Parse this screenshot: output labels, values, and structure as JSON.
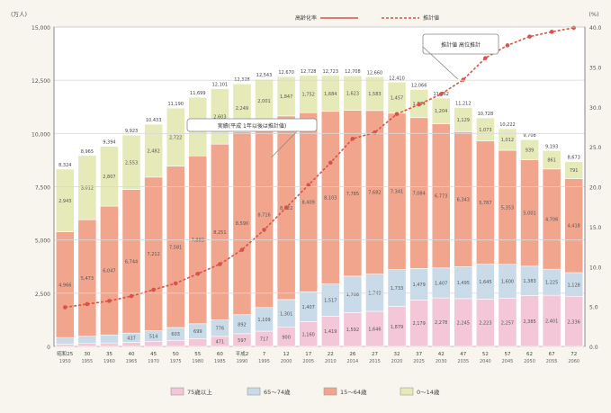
{
  "chart_data": {
    "type": "bar",
    "stacked": true,
    "title": "",
    "left_unit": "(万人)",
    "right_unit": "(%)",
    "top_legend": [
      {
        "label": "高齢化率",
        "color": "#d8524a"
      },
      {
        "label": "推計値",
        "color": "#d8524a"
      }
    ],
    "categories": [
      {
        "top": "昭和25",
        "bottom": "1950"
      },
      {
        "top": "30",
        "bottom": "1955"
      },
      {
        "top": "35",
        "bottom": "1960"
      },
      {
        "top": "40",
        "bottom": "1965"
      },
      {
        "top": "45",
        "bottom": "1970"
      },
      {
        "top": "50",
        "bottom": "1975"
      },
      {
        "top": "55",
        "bottom": "1980"
      },
      {
        "top": "60",
        "bottom": "1985"
      },
      {
        "top": "平成2",
        "bottom": "1990"
      },
      {
        "top": "7",
        "bottom": "1995"
      },
      {
        "top": "12",
        "bottom": "2000"
      },
      {
        "top": "17",
        "bottom": "2005"
      },
      {
        "top": "22",
        "bottom": "2010"
      },
      {
        "top": "26",
        "bottom": "2014"
      },
      {
        "top": "27",
        "bottom": "2015"
      },
      {
        "top": "32",
        "bottom": "2020"
      },
      {
        "top": "37",
        "bottom": "2025"
      },
      {
        "top": "42",
        "bottom": "2030"
      },
      {
        "top": "47",
        "bottom": "2035"
      },
      {
        "top": "52",
        "bottom": "2040"
      },
      {
        "top": "57",
        "bottom": "2045"
      },
      {
        "top": "62",
        "bottom": "2050"
      },
      {
        "top": "67",
        "bottom": "2055"
      },
      {
        "top": "72",
        "bottom": "2060"
      }
    ],
    "series": [
      {
        "name": "75歳以上",
        "color": "#f3c6d8",
        "values": [
          106,
          139,
          163,
          189,
          225,
          284,
          366,
          471,
          597,
          717,
          900,
          1160,
          1419,
          1592,
          1646,
          1879,
          2179,
          2278,
          2245,
          2223,
          2257,
          2385,
          2401,
          2336
        ]
      },
      {
        "name": "65～74歳",
        "color": "#c9dbe8",
        "values": [
          309,
          341,
          377,
          437,
          514,
          603,
          699,
          776,
          892,
          1109,
          1301,
          1407,
          1517,
          1708,
          1749,
          1733,
          1479,
          1407,
          1495,
          1645,
          1600,
          1383,
          1225,
          1128
        ]
      },
      {
        "name": "15～64歳",
        "color": "#f2a58d",
        "values": [
          4966,
          5473,
          6047,
          6744,
          7212,
          7581,
          7883,
          8251,
          8590,
          8716,
          8622,
          8409,
          8103,
          7785,
          7682,
          7341,
          7084,
          6773,
          6343,
          5787,
          5353,
          5001,
          4706,
          4418
        ]
      },
      {
        "name": "0～14歳",
        "color": "#e6eab8",
        "values": [
          2943,
          3012,
          2807,
          2553,
          2482,
          2722,
          2751,
          2603,
          2249,
          2001,
          1847,
          1752,
          1684,
          1623,
          1583,
          1457,
          1324,
          1204,
          1129,
          1073,
          1012,
          939,
          861,
          791
        ]
      }
    ],
    "rate_series": {
      "name": "高齢化率",
      "color": "#d8524a",
      "values": [
        4.9,
        5.3,
        5.7,
        6.3,
        7.1,
        7.9,
        9.1,
        10.3,
        12.1,
        14.6,
        17.4,
        20.2,
        23.0,
        26.0,
        26.8,
        29.1,
        30.3,
        31.6,
        33.4,
        36.1,
        37.7,
        38.8,
        39.4,
        39.9
      ]
    },
    "y_left": {
      "min": 0,
      "max": 15000,
      "ticks": [
        0,
        2500,
        5000,
        7500,
        10000,
        12500,
        15000
      ]
    },
    "y_right": {
      "min": 0,
      "max": 40,
      "ticks": [
        0,
        5,
        10,
        15,
        20,
        25,
        30,
        35,
        40
      ]
    },
    "annotations": [
      {
        "text": "実績(平成  1年以後は推計値)",
        "category_index": 9
      },
      {
        "text": "推計値  高位推計",
        "category_index": 18
      }
    ],
    "legend": [
      "75歳以上",
      "65～74歳",
      "15～64歳",
      "0～14歳"
    ],
    "legend_position": "bottom",
    "grid": false
  }
}
